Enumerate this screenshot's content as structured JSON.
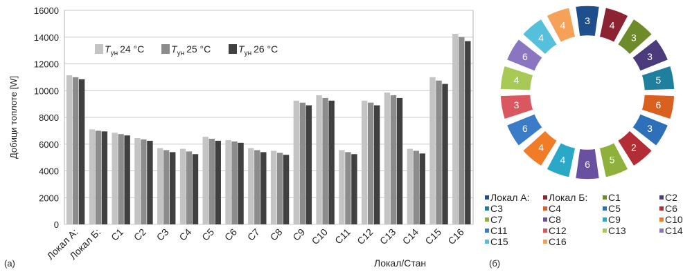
{
  "chart_data": [
    {
      "type": "bar",
      "panel_label": "(a)",
      "ylabel": "Добици топлоте [W]",
      "xlabel": "Локал/Стан",
      "ylim": [
        0,
        16000
      ],
      "yticks": [
        0,
        2000,
        4000,
        6000,
        8000,
        10000,
        12000,
        14000,
        16000
      ],
      "grid": true,
      "legend_position": "top-left",
      "categories": [
        "Локал А:",
        "Локал Б:",
        "C1",
        "C2",
        "C3",
        "C4",
        "C5",
        "C6",
        "C7",
        "C8",
        "C9",
        "C10",
        "C11",
        "C12",
        "C13",
        "C14",
        "C15",
        "C16"
      ],
      "series": [
        {
          "name": "24 °C",
          "name_symbol": "T",
          "name_subscript": "ун",
          "color": "#c4c4c4",
          "values": [
            11150,
            7100,
            6850,
            6450,
            5700,
            5650,
            6550,
            6300,
            5700,
            5500,
            9250,
            9650,
            5550,
            9250,
            9850,
            5650,
            11000,
            14250
          ]
        },
        {
          "name": "25 °C",
          "name_symbol": "T",
          "name_subscript": "ун",
          "color": "#8c8c8c",
          "values": [
            11000,
            7000,
            6750,
            6350,
            5550,
            5450,
            6400,
            6200,
            5550,
            5350,
            9100,
            9450,
            5400,
            9100,
            9650,
            5500,
            10750,
            14000
          ]
        },
        {
          "name": "26 °C",
          "name_symbol": "T",
          "name_subscript": "ун",
          "color": "#404040",
          "values": [
            10850,
            6950,
            6650,
            6250,
            5400,
            5250,
            6250,
            6100,
            5400,
            5200,
            8900,
            9250,
            5250,
            8900,
            9450,
            5300,
            10500,
            13700
          ]
        }
      ]
    },
    {
      "type": "pie",
      "variant": "donut",
      "panel_label": "(б)",
      "legend_position": "bottom",
      "slices": [
        {
          "name": "Локал А:",
          "value": 3,
          "color": "#1f4e8c"
        },
        {
          "name": "Локал Б:",
          "value": 4,
          "color": "#8b2332"
        },
        {
          "name": "C1",
          "value": 3,
          "color": "#6e8b2a"
        },
        {
          "name": "C2",
          "value": 3,
          "color": "#4b3a7c"
        },
        {
          "name": "C3",
          "value": 5,
          "color": "#1f7f9c"
        },
        {
          "name": "C4",
          "value": 6,
          "color": "#d9601f"
        },
        {
          "name": "C5",
          "value": 3,
          "color": "#2d6fb8"
        },
        {
          "name": "C6",
          "value": 2,
          "color": "#b22d35"
        },
        {
          "name": "C7",
          "value": 5,
          "color": "#8fb13b"
        },
        {
          "name": "C8",
          "value": 6,
          "color": "#6a50a0"
        },
        {
          "name": "C9",
          "value": 4,
          "color": "#2aa8c8"
        },
        {
          "name": "C10",
          "value": 4,
          "color": "#f07c28"
        },
        {
          "name": "C11",
          "value": 6,
          "color": "#3a7cc7"
        },
        {
          "name": "C12",
          "value": 3,
          "color": "#d9575e"
        },
        {
          "name": "C13",
          "value": 4,
          "color": "#a8c956"
        },
        {
          "name": "C14",
          "value": 6,
          "color": "#8a75c0"
        },
        {
          "name": "C15",
          "value": 4,
          "color": "#55c0dc"
        },
        {
          "name": "C16",
          "value": 4,
          "color": "#f5a15a"
        }
      ]
    }
  ]
}
